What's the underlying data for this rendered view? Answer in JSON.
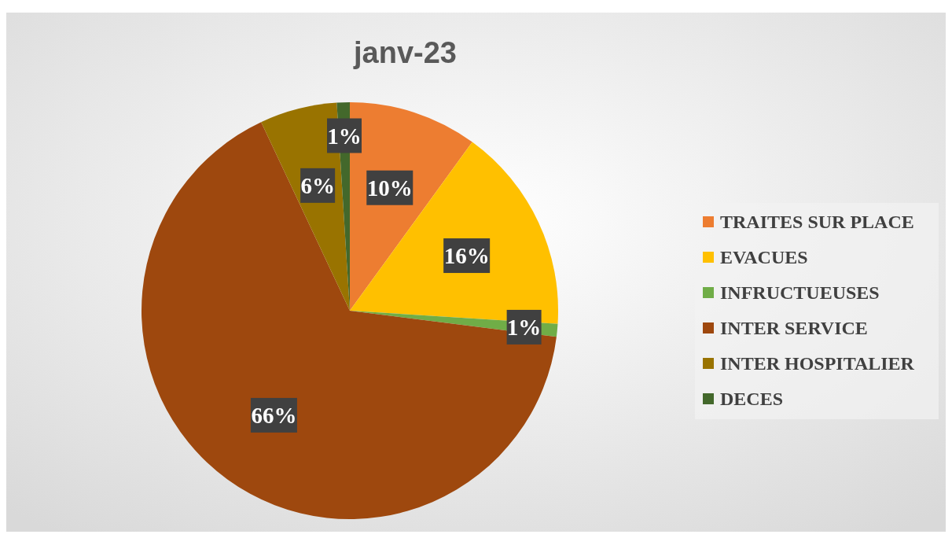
{
  "chart_data": {
    "type": "pie",
    "title": "janv-23",
    "categories": [
      "TRAITES SUR PLACE",
      "EVACUES",
      "INFRUCTUEUSES",
      "INTER SERVICE",
      "INTER HOSPITALIER",
      "DECES"
    ],
    "values": [
      10,
      16,
      1,
      66,
      6,
      1
    ],
    "colors": [
      "#ed7d31",
      "#ffc000",
      "#70ad47",
      "#9e480e",
      "#997300",
      "#43682b"
    ],
    "value_labels": [
      "10%",
      "16%",
      "1%",
      "66%",
      "6%",
      "1%"
    ],
    "legend": "right"
  }
}
